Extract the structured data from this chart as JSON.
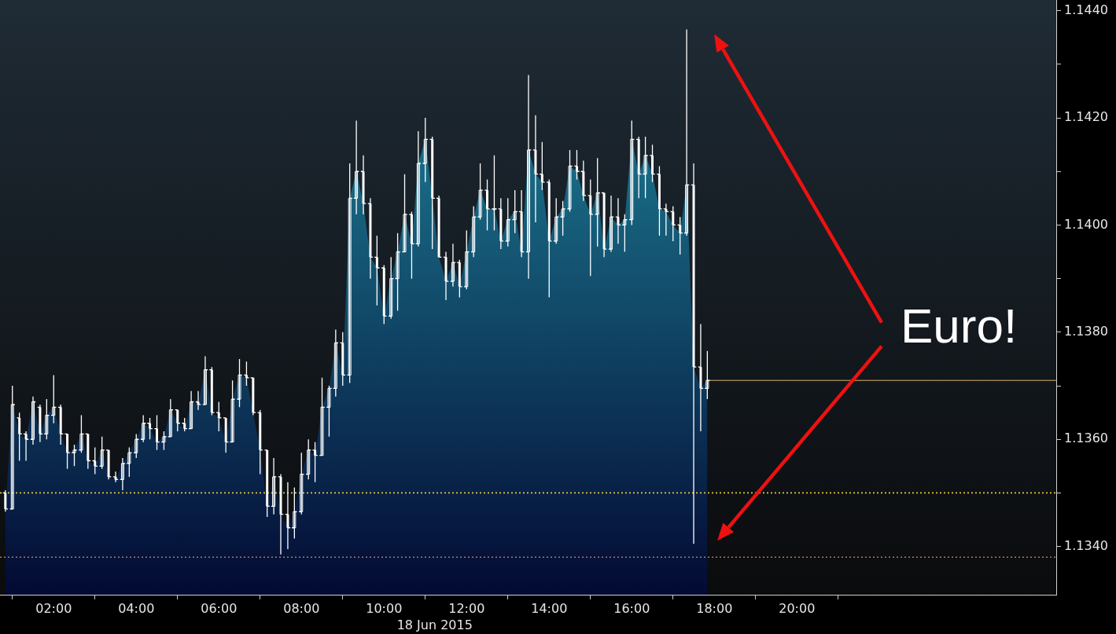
{
  "chart_data": {
    "type": "candlestick",
    "x": [
      0.83,
      1,
      1.17,
      1.33,
      1.5,
      1.67,
      1.83,
      2,
      2.17,
      2.33,
      2.5,
      2.67,
      2.83,
      3,
      3.17,
      3.33,
      3.5,
      3.67,
      3.83,
      4,
      4.17,
      4.33,
      4.5,
      4.67,
      4.83,
      5,
      5.17,
      5.33,
      5.5,
      5.67,
      5.83,
      6,
      6.17,
      6.33,
      6.5,
      6.67,
      6.83,
      7,
      7.17,
      7.33,
      7.5,
      7.67,
      7.83,
      8,
      8.17,
      8.33,
      8.5,
      8.67,
      8.83,
      9,
      9.17,
      9.33,
      9.5,
      9.67,
      9.83,
      10,
      10.17,
      10.33,
      10.5,
      10.67,
      10.83,
      11,
      11.17,
      11.33,
      11.5,
      11.67,
      11.83,
      12,
      12.17,
      12.33,
      12.5,
      12.67,
      12.83,
      13,
      13.17,
      13.33,
      13.5,
      13.67,
      13.83,
      14,
      14.17,
      14.33,
      14.5,
      14.67,
      14.83,
      15,
      15.17,
      15.33,
      15.5,
      15.67,
      15.83,
      16,
      16.17,
      16.33,
      16.5,
      16.67,
      16.83,
      17,
      17.17,
      17.33,
      17.5,
      17.67,
      17.83
    ],
    "series": [
      {
        "type": "area",
        "color": "#186782",
        "values": [
          1.1347,
          1.13665,
          1.1361,
          1.136,
          1.1367,
          1.1361,
          1.13645,
          1.1366,
          1.1361,
          1.13575,
          1.1358,
          1.1361,
          1.1356,
          1.1355,
          1.1358,
          1.1353,
          1.13525,
          1.13555,
          1.13575,
          1.136,
          1.1363,
          1.1362,
          1.13595,
          1.13605,
          1.13655,
          1.1363,
          1.1362,
          1.1367,
          1.13665,
          1.1373,
          1.1365,
          1.1364,
          1.13595,
          1.13675,
          1.1372,
          1.13715,
          1.1365,
          1.1358,
          1.13475,
          1.1353,
          1.1346,
          1.13435,
          1.13465,
          1.13535,
          1.1358,
          1.1357,
          1.1366,
          1.13695,
          1.1378,
          1.1372,
          1.1405,
          1.141,
          1.1404,
          1.1394,
          1.1392,
          1.1383,
          1.139,
          1.1395,
          1.1402,
          1.13965,
          1.14115,
          1.1416,
          1.1405,
          1.1394,
          1.13895,
          1.1393,
          1.13885,
          1.1395,
          1.14015,
          1.14065,
          1.1403,
          1.1403,
          1.1397,
          1.1401,
          1.14025,
          1.1395,
          1.1414,
          1.14095,
          1.1408,
          1.1397,
          1.14015,
          1.1403,
          1.1411,
          1.141,
          1.14055,
          1.1402,
          1.1406,
          1.13955,
          1.14015,
          1.14,
          1.1401,
          1.1416,
          1.14095,
          1.1413,
          1.14095,
          1.1403,
          1.14025,
          1.14,
          1.13985,
          1.14075,
          1.13735,
          1.13695,
          1.1371
        ]
      },
      {
        "color": "#ffffff",
        "ohlc": [
          [
            1.135,
            1.13505,
            1.13465,
            1.1347
          ],
          [
            1.1347,
            1.137,
            1.1347,
            1.13665
          ],
          [
            1.1364,
            1.1365,
            1.1356,
            1.1361
          ],
          [
            1.1361,
            1.13615,
            1.1356,
            1.136
          ],
          [
            1.136,
            1.1368,
            1.1359,
            1.1367
          ],
          [
            1.1366,
            1.13665,
            1.13595,
            1.1361
          ],
          [
            1.1361,
            1.13675,
            1.136,
            1.13645
          ],
          [
            1.13645,
            1.1372,
            1.1363,
            1.1366
          ],
          [
            1.1366,
            1.13665,
            1.1359,
            1.1361
          ],
          [
            1.1361,
            1.1361,
            1.13545,
            1.13575
          ],
          [
            1.13575,
            1.1359,
            1.1355,
            1.1358
          ],
          [
            1.1358,
            1.13645,
            1.13575,
            1.1361
          ],
          [
            1.1361,
            1.1361,
            1.13545,
            1.1356
          ],
          [
            1.1356,
            1.13585,
            1.13535,
            1.1355
          ],
          [
            1.1355,
            1.13605,
            1.13545,
            1.1358
          ],
          [
            1.1358,
            1.1358,
            1.13525,
            1.1353
          ],
          [
            1.1353,
            1.1354,
            1.1352,
            1.13525
          ],
          [
            1.13525,
            1.13565,
            1.13505,
            1.13555
          ],
          [
            1.13555,
            1.13585,
            1.1353,
            1.13575
          ],
          [
            1.13575,
            1.1361,
            1.13565,
            1.136
          ],
          [
            1.136,
            1.13645,
            1.13595,
            1.1363
          ],
          [
            1.1363,
            1.1364,
            1.136,
            1.1362
          ],
          [
            1.1362,
            1.13645,
            1.1358,
            1.13595
          ],
          [
            1.13595,
            1.13615,
            1.1358,
            1.13605
          ],
          [
            1.13605,
            1.13675,
            1.13605,
            1.13655
          ],
          [
            1.13655,
            1.13655,
            1.13615,
            1.1363
          ],
          [
            1.1363,
            1.1364,
            1.13615,
            1.1362
          ],
          [
            1.1362,
            1.1369,
            1.1362,
            1.1367
          ],
          [
            1.1367,
            1.1369,
            1.13655,
            1.13665
          ],
          [
            1.13665,
            1.13755,
            1.13665,
            1.1373
          ],
          [
            1.1373,
            1.13735,
            1.13645,
            1.1365
          ],
          [
            1.1365,
            1.1367,
            1.13615,
            1.1364
          ],
          [
            1.1364,
            1.1364,
            1.13575,
            1.13595
          ],
          [
            1.13595,
            1.1371,
            1.13595,
            1.13675
          ],
          [
            1.13675,
            1.1375,
            1.1366,
            1.1372
          ],
          [
            1.1372,
            1.13745,
            1.137,
            1.13715
          ],
          [
            1.13715,
            1.13715,
            1.13645,
            1.1365
          ],
          [
            1.1365,
            1.13655,
            1.13535,
            1.1358
          ],
          [
            1.1358,
            1.1358,
            1.13455,
            1.13475
          ],
          [
            1.13475,
            1.13565,
            1.1346,
            1.1353
          ],
          [
            1.1353,
            1.13535,
            1.13385,
            1.1346
          ],
          [
            1.1346,
            1.1352,
            1.13395,
            1.13435
          ],
          [
            1.13435,
            1.1351,
            1.13415,
            1.13465
          ],
          [
            1.13465,
            1.13575,
            1.1346,
            1.13535
          ],
          [
            1.13535,
            1.136,
            1.13525,
            1.1358
          ],
          [
            1.1358,
            1.13595,
            1.1352,
            1.1357
          ],
          [
            1.1357,
            1.13715,
            1.1357,
            1.1366
          ],
          [
            1.1366,
            1.137,
            1.13605,
            1.13695
          ],
          [
            1.13695,
            1.13805,
            1.1368,
            1.1378
          ],
          [
            1.1378,
            1.138,
            1.137,
            1.1372
          ],
          [
            1.1372,
            1.14115,
            1.13705,
            1.1405
          ],
          [
            1.1405,
            1.14195,
            1.1402,
            1.141
          ],
          [
            1.141,
            1.1413,
            1.1402,
            1.1404
          ],
          [
            1.1404,
            1.1405,
            1.139,
            1.1394
          ],
          [
            1.1394,
            1.1398,
            1.1385,
            1.1392
          ],
          [
            1.1392,
            1.13925,
            1.13815,
            1.1383
          ],
          [
            1.1383,
            1.1394,
            1.13825,
            1.139
          ],
          [
            1.139,
            1.13985,
            1.1384,
            1.1395
          ],
          [
            1.1395,
            1.14095,
            1.1395,
            1.1402
          ],
          [
            1.1402,
            1.14025,
            1.139,
            1.13965
          ],
          [
            1.13965,
            1.14175,
            1.1396,
            1.14115
          ],
          [
            1.14115,
            1.142,
            1.1408,
            1.1416
          ],
          [
            1.1416,
            1.14165,
            1.13955,
            1.1405
          ],
          [
            1.1405,
            1.14055,
            1.1394,
            1.1394
          ],
          [
            1.1394,
            1.1395,
            1.1386,
            1.13895
          ],
          [
            1.13895,
            1.13965,
            1.13885,
            1.1393
          ],
          [
            1.1393,
            1.13935,
            1.13865,
            1.13885
          ],
          [
            1.13885,
            1.1399,
            1.1388,
            1.1395
          ],
          [
            1.1395,
            1.14035,
            1.1394,
            1.14015
          ],
          [
            1.14015,
            1.14115,
            1.1401,
            1.14065
          ],
          [
            1.14065,
            1.14085,
            1.1399,
            1.1403
          ],
          [
            1.1403,
            1.1413,
            1.1399,
            1.1403
          ],
          [
            1.1403,
            1.1405,
            1.13955,
            1.1397
          ],
          [
            1.1397,
            1.1405,
            1.1396,
            1.1401
          ],
          [
            1.1401,
            1.14065,
            1.13985,
            1.14025
          ],
          [
            1.14025,
            1.14065,
            1.1394,
            1.1395
          ],
          [
            1.1395,
            1.1428,
            1.139,
            1.1414
          ],
          [
            1.1414,
            1.14205,
            1.14005,
            1.14095
          ],
          [
            1.14095,
            1.14155,
            1.14065,
            1.1408
          ],
          [
            1.1408,
            1.14085,
            1.13865,
            1.1397
          ],
          [
            1.1397,
            1.1405,
            1.13965,
            1.14015
          ],
          [
            1.14015,
            1.14045,
            1.1398,
            1.1403
          ],
          [
            1.1403,
            1.1414,
            1.14025,
            1.1411
          ],
          [
            1.1411,
            1.1414,
            1.14085,
            1.141
          ],
          [
            1.141,
            1.1412,
            1.14045,
            1.14055
          ],
          [
            1.14055,
            1.14085,
            1.13905,
            1.1402
          ],
          [
            1.1402,
            1.14125,
            1.1396,
            1.1406
          ],
          [
            1.1406,
            1.1406,
            1.1394,
            1.13955
          ],
          [
            1.13955,
            1.14055,
            1.1395,
            1.14015
          ],
          [
            1.14015,
            1.1405,
            1.13965,
            1.14
          ],
          [
            1.14,
            1.1402,
            1.1395,
            1.1401
          ],
          [
            1.1401,
            1.14195,
            1.14,
            1.1416
          ],
          [
            1.1416,
            1.14165,
            1.1405,
            1.14095
          ],
          [
            1.14095,
            1.14165,
            1.1405,
            1.1413
          ],
          [
            1.1413,
            1.1415,
            1.1408,
            1.14095
          ],
          [
            1.14095,
            1.1411,
            1.1398,
            1.1403
          ],
          [
            1.1403,
            1.1404,
            1.1398,
            1.14025
          ],
          [
            1.14025,
            1.14035,
            1.1397,
            1.14
          ],
          [
            1.14,
            1.14015,
            1.13945,
            1.13985
          ],
          [
            1.13985,
            1.14365,
            1.1398,
            1.14075
          ],
          [
            1.14075,
            1.14115,
            1.13405,
            1.13735
          ],
          [
            1.13735,
            1.13815,
            1.13615,
            1.13695
          ],
          [
            1.13695,
            1.13765,
            1.13675,
            1.1371
          ]
        ]
      }
    ],
    "xlim": [
      0.7,
      26.28
    ],
    "xticks": [
      {
        "value": 1,
        "label": null
      },
      {
        "value": 2,
        "label": "02:00"
      },
      {
        "value": 3,
        "label": null
      },
      {
        "value": 4,
        "label": "04:00"
      },
      {
        "value": 5,
        "label": null
      },
      {
        "value": 6,
        "label": "06:00"
      },
      {
        "value": 7,
        "label": null
      },
      {
        "value": 8,
        "label": "08:00"
      },
      {
        "value": 9,
        "label": null
      },
      {
        "value": 10,
        "label": "10:00"
      },
      {
        "value": 11,
        "label": null
      },
      {
        "value": 12,
        "label": "12:00"
      },
      {
        "value": 13,
        "label": null
      },
      {
        "value": 14,
        "label": "14:00"
      },
      {
        "value": 15,
        "label": null
      },
      {
        "value": 16,
        "label": "16:00"
      },
      {
        "value": 17,
        "label": null
      },
      {
        "value": 18,
        "label": "18:00"
      },
      {
        "value": 19,
        "label": null
      },
      {
        "value": 20,
        "label": "20:00"
      },
      {
        "value": 21,
        "label": null
      }
    ],
    "xlabel": "18 Jun 2015",
    "ylim": [
      1.1331,
      1.1442
    ],
    "yticks": [
      {
        "value": 1.134,
        "label": "1.1340"
      },
      {
        "value": 1.135,
        "label": null
      },
      {
        "value": 1.136,
        "label": "1.1360"
      },
      {
        "value": 1.137,
        "label": null
      },
      {
        "value": 1.138,
        "label": "1.1380"
      },
      {
        "value": 1.139,
        "label": null
      },
      {
        "value": 1.14,
        "label": "1.1400"
      },
      {
        "value": 1.141,
        "label": null
      },
      {
        "value": 1.142,
        "label": "1.1420"
      },
      {
        "value": 1.143,
        "label": null
      },
      {
        "value": 1.144,
        "label": "1.1440"
      }
    ],
    "ref_lines": [
      {
        "axis": "y",
        "value": 1.1371,
        "color": "#d9b26b",
        "line_style": "solid"
      },
      {
        "axis": "y",
        "value": 1.135,
        "color": "#e6c83c",
        "line_style": "dotted"
      },
      {
        "axis": "y",
        "value": 1.1338,
        "color": "#b07a50",
        "line_style": "dotted"
      }
    ],
    "annotations": [
      "Euro!"
    ]
  }
}
